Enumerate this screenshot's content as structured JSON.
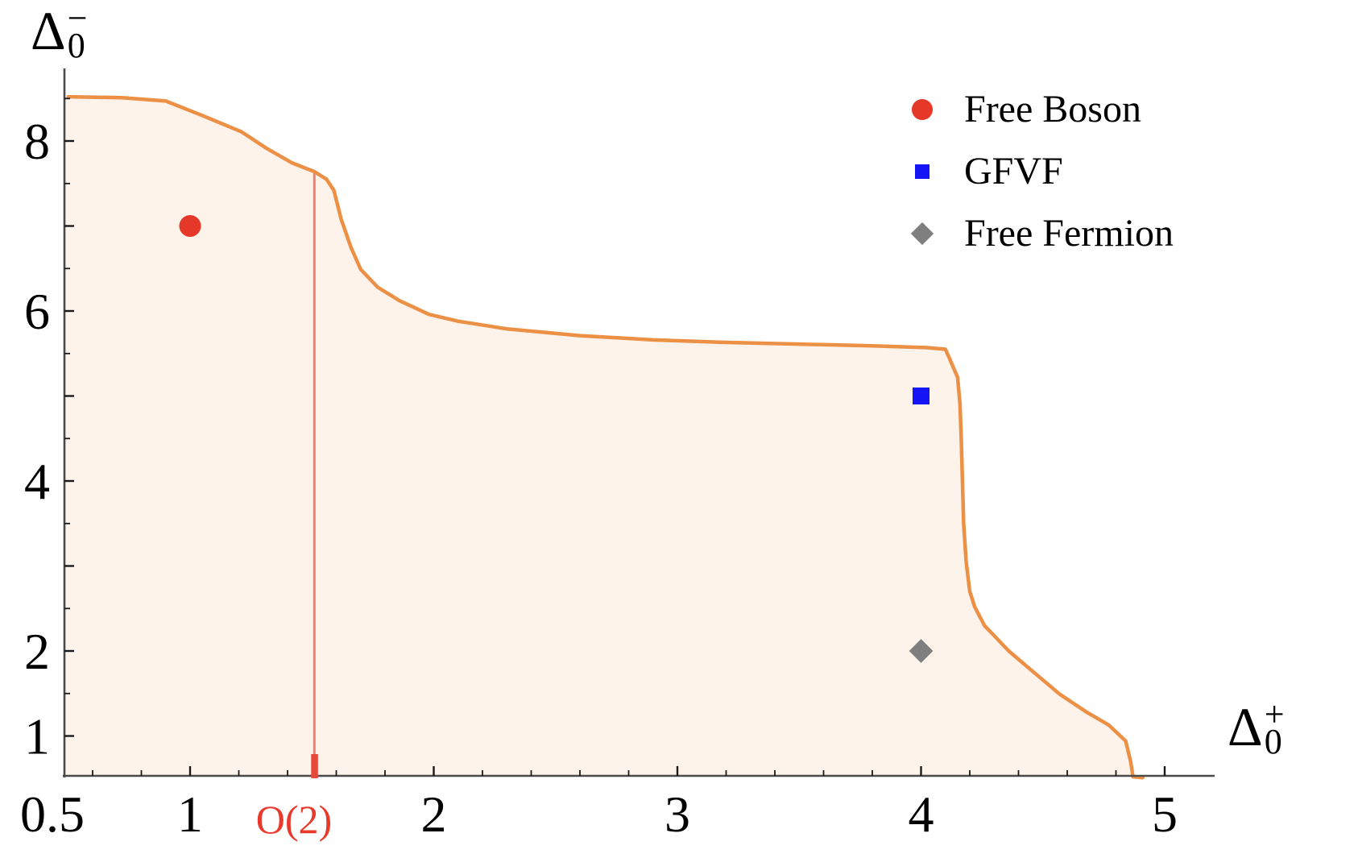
{
  "chart_data": {
    "type": "area",
    "title": "",
    "xlabel": {
      "base": "Δ",
      "sub": "0",
      "sup": "+"
    },
    "ylabel": {
      "base": "Δ",
      "sub": "0",
      "sup": "−"
    },
    "xlim": [
      0.5,
      5.2
    ],
    "ylim": [
      0.5,
      8.85
    ],
    "grid": false,
    "legend_position": "top-right",
    "x_major_ticks": [
      1,
      2,
      3,
      4,
      5
    ],
    "x_tick_labels": [
      "1",
      "2",
      "3",
      "4",
      "5"
    ],
    "x_edge_label": "0.5",
    "x_minor_step": 0.2,
    "y_major_ticks": [
      1,
      2,
      3,
      4,
      5,
      6,
      7,
      8
    ],
    "y_labeled_ticks": [
      {
        "value": 1,
        "label": "1"
      },
      {
        "value": 2,
        "label": "2"
      },
      {
        "value": 4,
        "label": "4"
      },
      {
        "value": 6,
        "label": "6"
      },
      {
        "value": 8,
        "label": "8"
      }
    ],
    "y_minor_step": 0.5,
    "boundary_curve": [
      [
        0.5,
        8.52
      ],
      [
        0.72,
        8.51
      ],
      [
        0.9,
        8.47
      ],
      [
        1.05,
        8.3
      ],
      [
        1.21,
        8.11
      ],
      [
        1.31,
        7.92
      ],
      [
        1.42,
        7.74
      ],
      [
        1.51,
        7.64
      ],
      [
        1.56,
        7.55
      ],
      [
        1.59,
        7.42
      ],
      [
        1.62,
        7.08
      ],
      [
        1.66,
        6.75
      ],
      [
        1.7,
        6.49
      ],
      [
        1.77,
        6.28
      ],
      [
        1.86,
        6.12
      ],
      [
        1.98,
        5.96
      ],
      [
        2.1,
        5.88
      ],
      [
        2.3,
        5.79
      ],
      [
        2.6,
        5.71
      ],
      [
        2.9,
        5.66
      ],
      [
        3.2,
        5.63
      ],
      [
        3.5,
        5.61
      ],
      [
        3.8,
        5.59
      ],
      [
        4.02,
        5.57
      ],
      [
        4.1,
        5.55
      ],
      [
        4.12,
        5.42
      ],
      [
        4.15,
        5.22
      ],
      [
        4.16,
        4.9
      ],
      [
        4.165,
        4.5
      ],
      [
        4.17,
        4.0
      ],
      [
        4.175,
        3.5
      ],
      [
        4.185,
        3.05
      ],
      [
        4.2,
        2.7
      ],
      [
        4.22,
        2.52
      ],
      [
        4.26,
        2.3
      ],
      [
        4.3,
        2.18
      ],
      [
        4.36,
        2.0
      ],
      [
        4.45,
        1.78
      ],
      [
        4.57,
        1.49
      ],
      [
        4.68,
        1.28
      ],
      [
        4.77,
        1.13
      ],
      [
        4.84,
        0.94
      ],
      [
        4.86,
        0.7
      ],
      [
        4.87,
        0.52
      ],
      [
        4.91,
        0.51
      ]
    ],
    "o2_marker": {
      "x": 1.51,
      "label": "O(2)",
      "line_top_y": 7.64
    },
    "points": [
      {
        "label": "Free Boson",
        "x": 1,
        "y": 7,
        "marker": "circle"
      },
      {
        "label": "GFVF",
        "x": 4,
        "y": 5,
        "marker": "square"
      },
      {
        "label": "Free Fermion",
        "x": 4,
        "y": 2,
        "marker": "diamond"
      }
    ],
    "legend": [
      {
        "label": "Free Boson",
        "marker": "circle",
        "color": "#E53829"
      },
      {
        "label": "GFVF",
        "marker": "square",
        "color": "#1414F5"
      },
      {
        "label": "Free Fermion",
        "marker": "diamond",
        "color": "#7F7F7F"
      }
    ],
    "colors": {
      "curve": "#EC9045",
      "fill": "#FDF3EB",
      "o2_line": "#F26A5E",
      "o2_base": "#E6483A",
      "o2_label": "#E8392B",
      "free_boson": "#E53829",
      "gfvf": "#1414F5",
      "free_fermion": "#7F7F7F",
      "axis": "#4A4A4A",
      "tick": "#1A1A1A",
      "text": "#000000"
    }
  }
}
